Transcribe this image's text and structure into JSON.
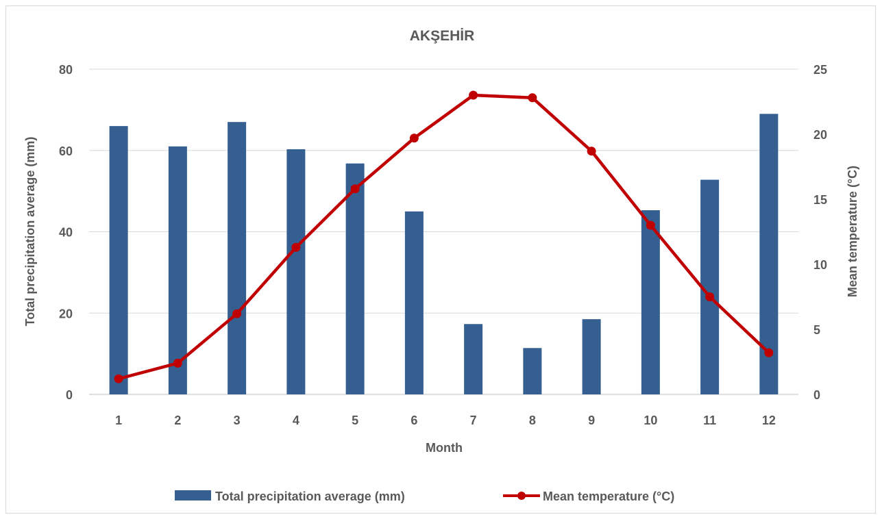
{
  "chart_data": {
    "type": "bar+line",
    "title": "AKŞEHİR",
    "xlabel": "Month",
    "ylabel_left": "Total precipitation average (mm)",
    "ylabel_right": "Mean temperature (°C)",
    "categories": [
      "1",
      "2",
      "3",
      "4",
      "5",
      "6",
      "7",
      "8",
      "9",
      "10",
      "11",
      "12"
    ],
    "y_left": {
      "min": 0,
      "max": 80,
      "ticks": [
        "0",
        "20",
        "40",
        "60",
        "80"
      ]
    },
    "y_right": {
      "min": 0,
      "max": 25,
      "ticks": [
        "0",
        "5",
        "10",
        "15",
        "20",
        "25"
      ]
    },
    "grid": true,
    "legend_position": "bottom",
    "series": [
      {
        "name": "Total precipitation average (mm)",
        "kind": "bar",
        "axis": "left",
        "color": "#355f91",
        "values": [
          66,
          61,
          67,
          60.3,
          56.8,
          45,
          17.3,
          11.4,
          18.5,
          45.3,
          52.8,
          69
        ]
      },
      {
        "name": "Mean temperature (°C)",
        "kind": "line",
        "axis": "right",
        "color": "#c00000",
        "values": [
          1.2,
          2.4,
          6.2,
          11.3,
          15.8,
          19.7,
          23.0,
          22.8,
          18.7,
          13.0,
          7.5,
          3.2
        ]
      }
    ]
  }
}
